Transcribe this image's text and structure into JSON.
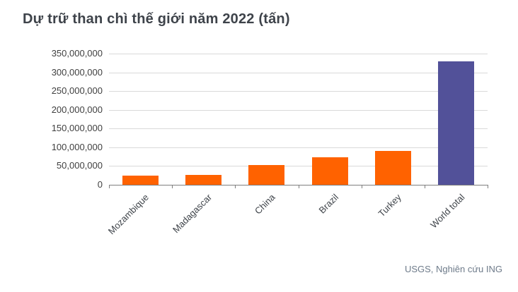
{
  "title": "Dự trữ than chì thế giới năm 2022 (tấn)",
  "source": "USGS, Nghiên cứu ING",
  "colors": {
    "bar_default": "#ff6200",
    "bar_total": "#525199",
    "title_text": "#3e434a",
    "axis_text": "#404040",
    "gridline": "#d9d9d9",
    "axis_line": "#7f7f7f",
    "source_text": "#6e7b8a",
    "background": "#ffffff"
  },
  "chart_data": {
    "type": "bar",
    "title": "Dự trữ than chì thế giới năm 2022 (tấn)",
    "categories": [
      "Mozambique",
      "Madagascar",
      "China",
      "Brazil",
      "Turkey",
      "World total"
    ],
    "values": [
      25000000,
      26000000,
      52000000,
      74000000,
      90000000,
      330000000
    ],
    "bar_colors": [
      "#ff6200",
      "#ff6200",
      "#ff6200",
      "#ff6200",
      "#ff6200",
      "#525199"
    ],
    "xlabel": "",
    "ylabel": "",
    "ylim": [
      0,
      350000000
    ],
    "y_ticks": [
      0,
      50000000,
      100000000,
      150000000,
      200000000,
      250000000,
      300000000,
      350000000
    ],
    "y_tick_format": "comma",
    "x_label_rotation": -45,
    "grid": "horizontal",
    "legend": "none",
    "source": "USGS, Nghiên cứu ING"
  }
}
